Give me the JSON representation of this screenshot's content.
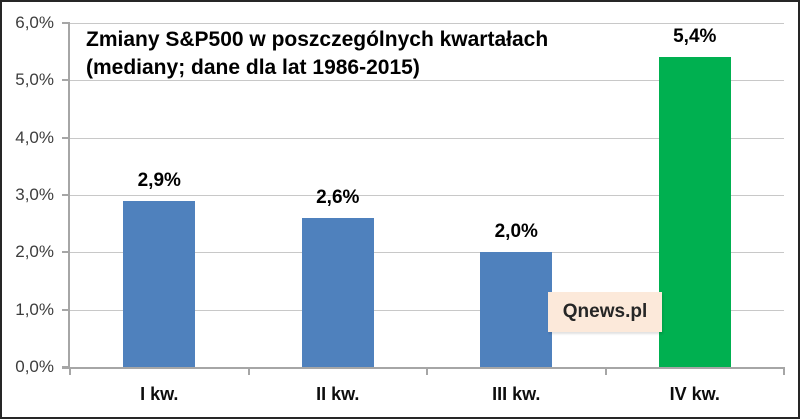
{
  "title": {
    "line1": "Zmiany S&P500 w poszczególnych kwartałach",
    "line2": "(mediany; dane dla lat 1986-2015)"
  },
  "watermark": {
    "label": "Qnews.pl",
    "bg": "#FCE9DA",
    "text_color": "#262626"
  },
  "colors": {
    "bar_blue": "#4F81BD",
    "bar_green": "#00B050",
    "gridline": "#C8C8C8",
    "axis": "#A6A6A6",
    "ytick_text": "#3D3D3D",
    "label_text": "#000000"
  },
  "chart_data": {
    "type": "bar",
    "title": "Zmiany S&P500 w poszczególnych kwartałach (mediany; dane dla lat 1986-2015)",
    "categories": [
      "I kw.",
      "II kw.",
      "III kw.",
      "IV kw."
    ],
    "values": [
      2.9,
      2.6,
      2.0,
      5.4
    ],
    "value_labels": [
      "2,9%",
      "2,6%",
      "2,0%",
      "5,4%"
    ],
    "bar_colors": [
      "#4F81BD",
      "#4F81BD",
      "#4F81BD",
      "#00B050"
    ],
    "xlabel": "",
    "ylabel": "",
    "ylim": [
      0,
      6
    ],
    "yticks": [
      0,
      1,
      2,
      3,
      4,
      5,
      6
    ],
    "ytick_labels": [
      "0,0%",
      "1,0%",
      "2,0%",
      "3,0%",
      "4,0%",
      "5,0%",
      "6,0%"
    ],
    "grid": true,
    "legend": false,
    "annotations": [
      "Qnews.pl"
    ]
  }
}
